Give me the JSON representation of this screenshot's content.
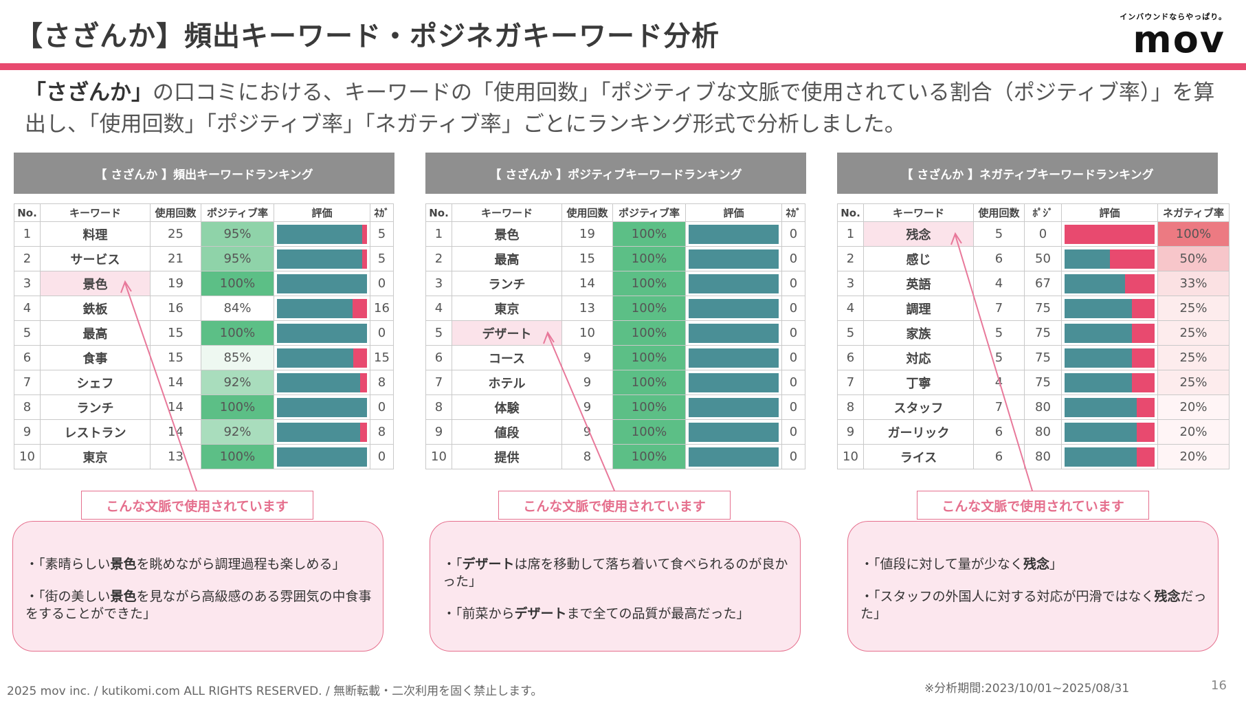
{
  "header": {
    "title": "【さざんか】頻出キーワード・ポジネガキーワード分析",
    "brand_tagline": "インバウンドならやっぱり。",
    "brand_logo": "mov"
  },
  "intro": {
    "bold": "「さざんか」",
    "text": "の口コミにおける、キーワードの「使用回数」「ポジティブな文脈で使用されている割合（ポジティブ率）」を算出し、「使用回数」「ポジティブ率」「ネガティブ率」ごとにランキング形式で分析しました。"
  },
  "colors": {
    "accent": "#e84a6f",
    "teal": "#4a8f96",
    "header_gray": "#8f8f8f"
  },
  "tables": [
    {
      "title": "【 さざんか 】頻出キーワードランキング",
      "headers": [
        "No.",
        "キーワード",
        "使用回数",
        "ポジティブ率",
        "評価",
        "ﾈｶﾞ"
      ],
      "rate_mode": "positive",
      "highlight_row": 2,
      "rows": [
        {
          "no": "1",
          "keyword": "料理",
          "count": "25",
          "rate": "95%",
          "pos": 95,
          "extra": "5"
        },
        {
          "no": "2",
          "keyword": "サービス",
          "count": "21",
          "rate": "95%",
          "pos": 95,
          "extra": "5"
        },
        {
          "no": "3",
          "keyword": "景色",
          "count": "19",
          "rate": "100%",
          "pos": 100,
          "extra": "0"
        },
        {
          "no": "4",
          "keyword": "鉄板",
          "count": "16",
          "rate": "84%",
          "pos": 84,
          "extra": "16"
        },
        {
          "no": "5",
          "keyword": "最高",
          "count": "15",
          "rate": "100%",
          "pos": 100,
          "extra": "0"
        },
        {
          "no": "6",
          "keyword": "食事",
          "count": "15",
          "rate": "85%",
          "pos": 85,
          "extra": "15"
        },
        {
          "no": "7",
          "keyword": "シェフ",
          "count": "14",
          "rate": "92%",
          "pos": 92,
          "extra": "8"
        },
        {
          "no": "8",
          "keyword": "ランチ",
          "count": "14",
          "rate": "100%",
          "pos": 100,
          "extra": "0"
        },
        {
          "no": "9",
          "keyword": "レストラン",
          "count": "14",
          "rate": "92%",
          "pos": 92,
          "extra": "8"
        },
        {
          "no": "10",
          "keyword": "東京",
          "count": "13",
          "rate": "100%",
          "pos": 100,
          "extra": "0"
        }
      ]
    },
    {
      "title": "【 さざんか 】ポジティブキーワードランキング",
      "headers": [
        "No.",
        "キーワード",
        "使用回数",
        "ポジティブ率",
        "評価",
        "ﾈｶﾞ"
      ],
      "rate_mode": "positive",
      "highlight_row": 4,
      "rows": [
        {
          "no": "1",
          "keyword": "景色",
          "count": "19",
          "rate": "100%",
          "pos": 100,
          "extra": "0"
        },
        {
          "no": "2",
          "keyword": "最高",
          "count": "15",
          "rate": "100%",
          "pos": 100,
          "extra": "0"
        },
        {
          "no": "3",
          "keyword": "ランチ",
          "count": "14",
          "rate": "100%",
          "pos": 100,
          "extra": "0"
        },
        {
          "no": "4",
          "keyword": "東京",
          "count": "13",
          "rate": "100%",
          "pos": 100,
          "extra": "0"
        },
        {
          "no": "5",
          "keyword": "デザート",
          "count": "10",
          "rate": "100%",
          "pos": 100,
          "extra": "0"
        },
        {
          "no": "6",
          "keyword": "コース",
          "count": "9",
          "rate": "100%",
          "pos": 100,
          "extra": "0"
        },
        {
          "no": "7",
          "keyword": "ホテル",
          "count": "9",
          "rate": "100%",
          "pos": 100,
          "extra": "0"
        },
        {
          "no": "8",
          "keyword": "体験",
          "count": "9",
          "rate": "100%",
          "pos": 100,
          "extra": "0"
        },
        {
          "no": "9",
          "keyword": "値段",
          "count": "9",
          "rate": "100%",
          "pos": 100,
          "extra": "0"
        },
        {
          "no": "10",
          "keyword": "提供",
          "count": "8",
          "rate": "100%",
          "pos": 100,
          "extra": "0"
        }
      ]
    },
    {
      "title": "【 さざんか 】ネガティブキーワードランキング",
      "headers": [
        "No.",
        "キーワード",
        "使用回数",
        "ﾎﾟｼﾞ",
        "評価",
        "ネガティブ率"
      ],
      "rate_mode": "negative",
      "highlight_row": 0,
      "rows": [
        {
          "no": "1",
          "keyword": "残念",
          "count": "5",
          "extra": "0",
          "pos": 0,
          "rate": "100%"
        },
        {
          "no": "2",
          "keyword": "感じ",
          "count": "6",
          "extra": "50",
          "pos": 50,
          "rate": "50%"
        },
        {
          "no": "3",
          "keyword": "英語",
          "count": "4",
          "extra": "67",
          "pos": 67,
          "rate": "33%"
        },
        {
          "no": "4",
          "keyword": "調理",
          "count": "7",
          "extra": "75",
          "pos": 75,
          "rate": "25%"
        },
        {
          "no": "5",
          "keyword": "家族",
          "count": "5",
          "extra": "75",
          "pos": 75,
          "rate": "25%"
        },
        {
          "no": "6",
          "keyword": "対応",
          "count": "5",
          "extra": "75",
          "pos": 75,
          "rate": "25%"
        },
        {
          "no": "7",
          "keyword": "丁寧",
          "count": "4",
          "extra": "75",
          "pos": 75,
          "rate": "25%"
        },
        {
          "no": "8",
          "keyword": "スタッフ",
          "count": "7",
          "extra": "80",
          "pos": 80,
          "rate": "20%"
        },
        {
          "no": "9",
          "keyword": "ガーリック",
          "count": "6",
          "extra": "80",
          "pos": 80,
          "rate": "20%"
        },
        {
          "no": "10",
          "keyword": "ライス",
          "count": "6",
          "extra": "80",
          "pos": 80,
          "rate": "20%"
        }
      ]
    }
  ],
  "context_label": "こんな文脈で使用されています",
  "quotes": [
    [
      [
        {
          "t": "・「素晴らしい"
        },
        {
          "t": "景色",
          "b": true
        },
        {
          "t": "を眺めながら調理過程も楽しめる」"
        }
      ],
      [
        {
          "t": "・「街の美しい"
        },
        {
          "t": "景色",
          "b": true
        },
        {
          "t": "を見ながら高級感のある雰囲気の中食事をすることができた」"
        }
      ]
    ],
    [
      [
        {
          "t": "・「"
        },
        {
          "t": "デザート",
          "b": true
        },
        {
          "t": "は席を移動して落ち着いて食べられるのが良かった」"
        }
      ],
      [
        {
          "t": "・「前菜から"
        },
        {
          "t": "デザート",
          "b": true
        },
        {
          "t": "まで全ての品質が最高だった」"
        }
      ]
    ],
    [
      [
        {
          "t": "・「値段に対して量が少なく"
        },
        {
          "t": "残念",
          "b": true
        },
        {
          "t": "」"
        }
      ],
      [
        {
          "t": "・「スタッフの外国人に対する対応が円滑ではなく"
        },
        {
          "t": "残念",
          "b": true
        },
        {
          "t": "だった」"
        }
      ]
    ]
  ],
  "footer": {
    "copyright": "2025 mov inc. / kutikomi.com ALL RIGHTS RESERVED. / 無断転載・二次利用を固く禁止します。",
    "period": "※分析期間:2023/10/01~2025/08/31",
    "page": "16"
  }
}
